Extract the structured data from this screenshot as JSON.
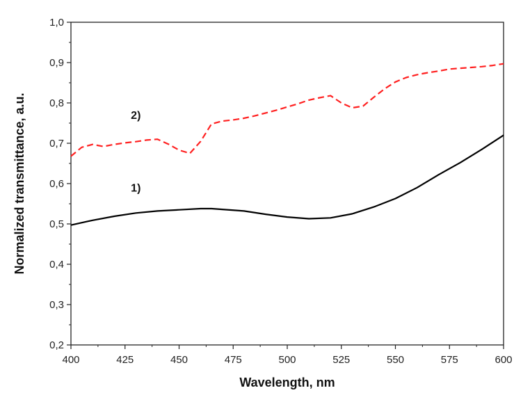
{
  "chart_data": {
    "type": "line",
    "title": "",
    "xlabel": "Wavelength, nm",
    "ylabel": "Normalized transmittance, a.u.",
    "xlim": [
      400,
      600
    ],
    "ylim": [
      0.2,
      1.0
    ],
    "x_ticks": [
      "400",
      "425",
      "450",
      "475",
      "500",
      "525",
      "550",
      "575",
      "600"
    ],
    "y_ticks": [
      "0,2",
      "0,3",
      "0,4",
      "0,5",
      "0,6",
      "0,7",
      "0,8",
      "0,9",
      "1,0"
    ],
    "grid": false,
    "annotations": [
      {
        "text": "1)",
        "x": 430,
        "y": 0.58
      },
      {
        "text": "2)",
        "x": 430,
        "y": 0.76
      }
    ],
    "series": [
      {
        "name": "1)",
        "color": "#000000",
        "style": "solid",
        "x": [
          400,
          410,
          420,
          430,
          440,
          450,
          460,
          465,
          470,
          480,
          490,
          500,
          510,
          520,
          530,
          540,
          550,
          560,
          570,
          580,
          590,
          600
        ],
        "y": [
          0.497,
          0.509,
          0.519,
          0.527,
          0.532,
          0.535,
          0.538,
          0.538,
          0.536,
          0.532,
          0.524,
          0.517,
          0.513,
          0.515,
          0.525,
          0.542,
          0.563,
          0.59,
          0.622,
          0.652,
          0.685,
          0.72
        ]
      },
      {
        "name": "2)",
        "color": "#ff2020",
        "style": "dashed",
        "x": [
          400,
          405,
          410,
          415,
          420,
          425,
          430,
          435,
          440,
          445,
          450,
          455,
          460,
          465,
          470,
          475,
          480,
          485,
          490,
          495,
          500,
          505,
          510,
          515,
          520,
          525,
          530,
          535,
          540,
          545,
          550,
          555,
          560,
          565,
          570,
          575,
          580,
          585,
          590,
          595,
          600
        ],
        "y": [
          0.668,
          0.69,
          0.697,
          0.692,
          0.697,
          0.701,
          0.704,
          0.708,
          0.71,
          0.698,
          0.683,
          0.675,
          0.705,
          0.748,
          0.755,
          0.758,
          0.762,
          0.768,
          0.775,
          0.782,
          0.79,
          0.798,
          0.807,
          0.813,
          0.818,
          0.8,
          0.788,
          0.792,
          0.814,
          0.835,
          0.852,
          0.863,
          0.87,
          0.875,
          0.879,
          0.884,
          0.886,
          0.888,
          0.89,
          0.893,
          0.897
        ]
      }
    ]
  }
}
